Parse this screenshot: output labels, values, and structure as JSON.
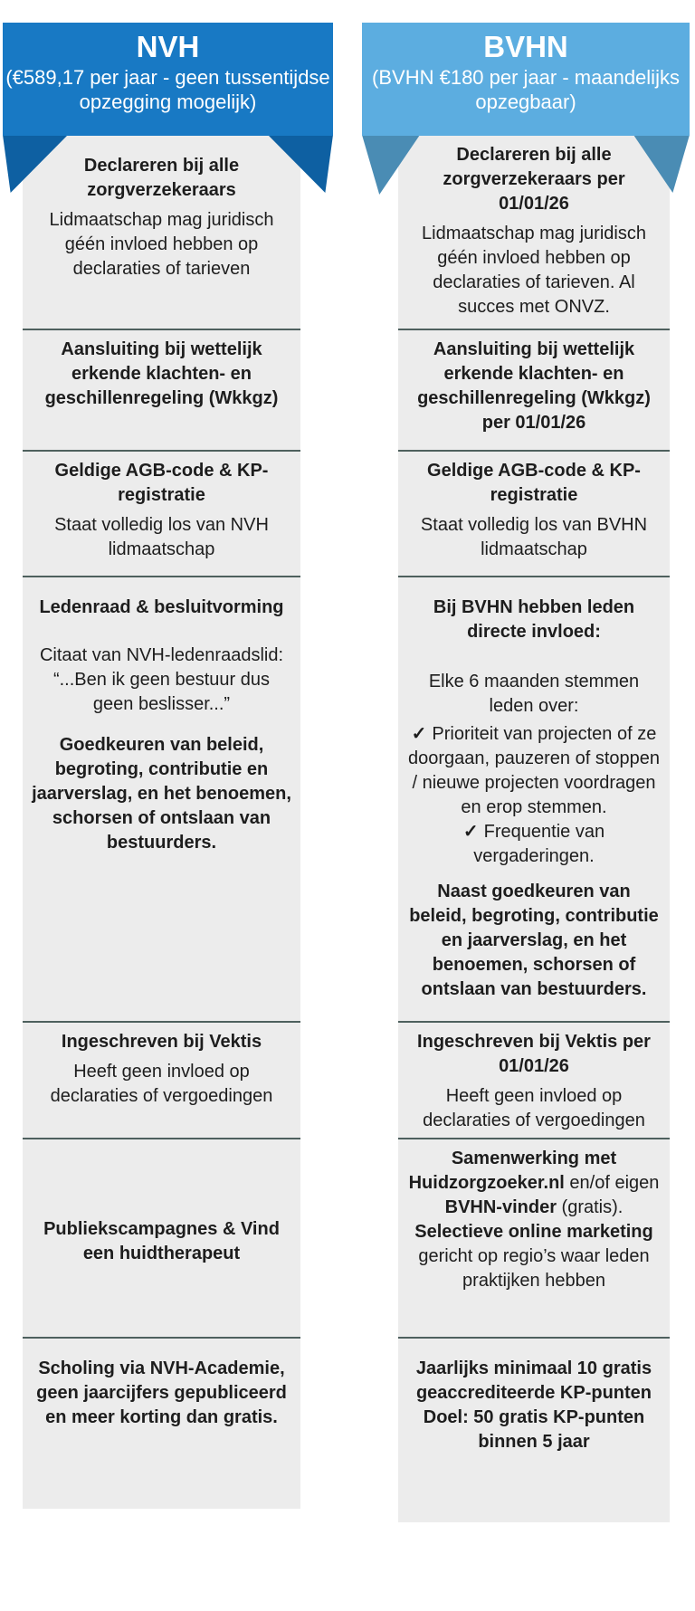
{
  "colors": {
    "nvh_banner": "#1879c4",
    "nvh_fold": "#0e60a2",
    "bvhn_banner": "#5cade0",
    "bvhn_fold": "#4a8cb4",
    "panel_gray": "#ececec",
    "divider": "#4e605e",
    "text": "#1d1d1d",
    "banner_text": "#ffffff"
  },
  "nvh": {
    "header": {
      "title": "NVH",
      "subtitle": "(€589,17 per jaar - geen tussentijdse opzegging mogelijk)"
    },
    "row1": {
      "title": "Declareren bij alle zorgverzekeraars",
      "body": "Lidmaatschap mag juridisch géén invloed hebben op declaraties of tarieven"
    },
    "row2": {
      "title": "Aansluiting bij wettelijk erkende klachten- en geschillenregeling (Wkkgz)"
    },
    "row3": {
      "title": "Geldige AGB-code & KP-registratie",
      "body": "Staat volledig los van NVH lidmaatschap"
    },
    "row4": {
      "title": "Ledenraad & besluitvorming",
      "quote": "Citaat van NVH-ledenraadslid: “...Ben ik geen bestuur dus geen beslisser...”",
      "bold_note": "Goedkeuren van beleid, begroting, contributie en jaarverslag, en het benoemen, schorsen of ontslaan van bestuurders."
    },
    "row5": {
      "title": "Ingeschreven bij Vektis",
      "body": "Heeft geen invloed op declaraties of vergoedingen"
    },
    "row6": {
      "title": "Publiekscampagnes & Vind een huidtherapeut"
    },
    "row7": {
      "title": "Scholing via NVH-Academie, geen jaarcijfers gepubliceerd en meer korting dan gratis."
    }
  },
  "bvhn": {
    "header": {
      "title": "BVHN",
      "subtitle": "(BVHN €180 per jaar - maandelijks opzegbaar)"
    },
    "row1": {
      "title": "Declareren bij alle zorgverzekeraars per 01/01/26",
      "body": "Lidmaatschap mag juridisch géén invloed hebben op declaraties of tarieven. Al succes met ONVZ."
    },
    "row2": {
      "title": "Aansluiting bij wettelijk erkende klachten- en geschillenregeling (Wkkgz) per 01/01/26"
    },
    "row3": {
      "title": "Geldige AGB-code & KP-registratie",
      "body": "Staat volledig los van BVHN lidmaatschap"
    },
    "row4": {
      "title": "Bij BVHN hebben leden directe invloed:",
      "intro": "Elke 6 maanden stemmen leden over:",
      "check_icon": "✓",
      "check_items": [
        "Prioriteit van projecten of ze doorgaan, pauzeren of stoppen / nieuwe projecten voordragen en erop stemmen.",
        "Frequentie van vergaderingen."
      ],
      "bold_note": "Naast goedkeuren van beleid, begroting, contributie en jaarverslag, en het benoemen, schorsen of ontslaan van bestuurders."
    },
    "row5": {
      "title": "Ingeschreven bij Vektis per 01/01/26",
      "body": "Heeft geen invloed op declaraties of vergoedingen"
    },
    "row6": {
      "segments": [
        {
          "text": "Samenwerking met Huidzorgzoeker.nl",
          "bold": true
        },
        {
          "text": " en/of eigen ",
          "bold": false
        },
        {
          "text": "BVHN-vinder",
          "bold": true
        },
        {
          "text": " (gratis). ",
          "bold": false
        },
        {
          "text": "Selectieve online marketing",
          "bold": true
        },
        {
          "text": " gericht op regio’s waar leden praktijken hebben",
          "bold": false
        }
      ]
    },
    "row7": {
      "title": "Jaarlijks minimaal 10 gratis geaccrediteerde KP-punten Doel: 50 gratis KP-punten binnen 5 jaar"
    }
  }
}
